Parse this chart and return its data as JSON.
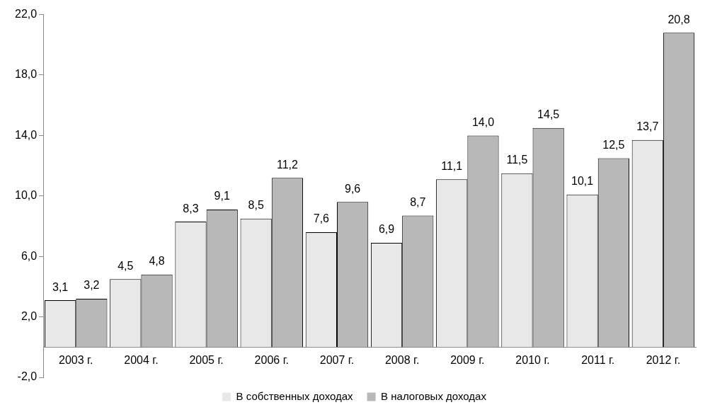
{
  "chart_data": {
    "type": "bar",
    "categories": [
      "2003 г.",
      "2004 г.",
      "2005 г.",
      "2006 г.",
      "2007 г.",
      "2008 г.",
      "2009 г.",
      "2010 г.",
      "2011 г.",
      "2012 г."
    ],
    "series": [
      {
        "name": "В собственных доходах",
        "color": "#e8e8e8",
        "values": [
          3.1,
          4.5,
          8.3,
          8.5,
          7.6,
          6.9,
          11.1,
          11.5,
          10.1,
          13.7
        ],
        "value_labels": [
          "3,1",
          "4,5",
          "8,3",
          "8,5",
          "7,6",
          "6,9",
          "11,1",
          "11,5",
          "10,1",
          "13,7"
        ]
      },
      {
        "name": "В налоговых доходах",
        "color": "#b8b8b8",
        "values": [
          3.2,
          4.8,
          9.1,
          11.2,
          9.6,
          8.7,
          14.0,
          14.5,
          12.5,
          20.8
        ],
        "value_labels": [
          "3,2",
          "4,8",
          "9,1",
          "11,2",
          "9,6",
          "8,7",
          "14,0",
          "14,5",
          "12,5",
          "20,8"
        ]
      }
    ],
    "ylim": [
      -2,
      22
    ],
    "yticks": [
      {
        "value": -2,
        "label": "-2,0"
      },
      {
        "value": 2,
        "label": "2,0"
      },
      {
        "value": 6,
        "label": "6,0"
      },
      {
        "value": 10,
        "label": "10,0"
      },
      {
        "value": 14,
        "label": "14,0"
      },
      {
        "value": 18,
        "label": "18,0"
      },
      {
        "value": 22,
        "label": "22,0"
      }
    ],
    "grid": false,
    "legend": "bottom"
  }
}
